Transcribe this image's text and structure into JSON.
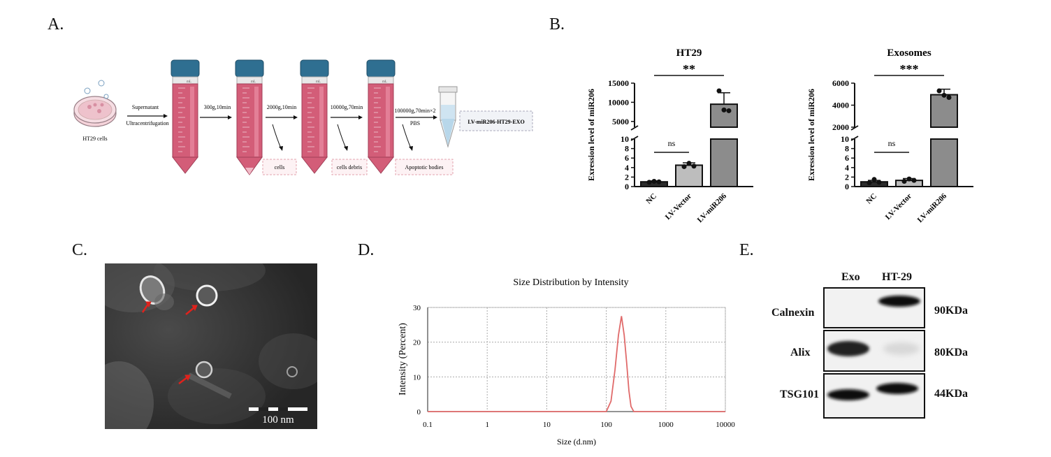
{
  "panels": {
    "A": {
      "letter": "A.",
      "cells_label": "HT29 cells",
      "step1_top": "Supernatant",
      "step1_bottom": "Ultracentrifugation",
      "step2": "300g,10min",
      "step3": "2000g,10min",
      "step4": "10000g,70min",
      "step5_top": "100000g,70min×2",
      "step5_bottom": "PBS",
      "product": "LV-miR206-HT29-EXO",
      "discard_1": "cells",
      "discard_2": "cells debris",
      "discard_3": "Apoptotic bodies",
      "tube_unit": "mL",
      "colors": {
        "tube": "#d35d78",
        "cap": "#2f6f91",
        "discard_border": "#e2a3ae",
        "tube_blue": "#b8d7ea"
      }
    },
    "B": {
      "letter": "B.",
      "ns_label": "ns"
    },
    "C": {
      "letter": "C.",
      "scale_label": "100 nm"
    },
    "D": {
      "letter": "D."
    },
    "E": {
      "letter": "E.",
      "columns": [
        "Exo",
        "HT-29"
      ],
      "rows": [
        {
          "protein": "Calnexin",
          "size": "90KDa"
        },
        {
          "protein": "Alix",
          "size": "80KDa"
        },
        {
          "protein": "TSG101",
          "size": "44KDa"
        }
      ]
    }
  },
  "chart_data": [
    {
      "type": "bar",
      "title": "HT29",
      "ylabel": "Exression level of miR206",
      "categories": [
        "NC",
        "LV-Vector",
        "LV-miR206"
      ],
      "values": [
        1.0,
        4.5,
        9500
      ],
      "error": [
        0.2,
        0.5,
        3000
      ],
      "points": [
        [
          0.9,
          1.1,
          1.0
        ],
        [
          4.2,
          4.9,
          4.3
        ],
        [
          13000,
          8000,
          7800
        ]
      ],
      "axis_lower": {
        "range": [
          0,
          10
        ],
        "ticks": [
          0,
          2,
          4,
          6,
          8,
          10
        ]
      },
      "axis_upper": {
        "range": [
          3500,
          15000
        ],
        "ticks": [
          5000,
          10000,
          15000
        ]
      },
      "significance": [
        {
          "from": "NC",
          "to": "LV-miR206",
          "label": "**"
        },
        {
          "from": "NC",
          "to": "LV-Vector",
          "label": "ns"
        }
      ],
      "bar_colors": [
        "#2b2b2b",
        "#bdbdbd",
        "#8c8c8c"
      ]
    },
    {
      "type": "bar",
      "title": "Exosomes",
      "ylabel": "Exression level of miR206",
      "categories": [
        "NC",
        "LV-Vector",
        "LV-miR206"
      ],
      "values": [
        1.0,
        1.3,
        4950
      ],
      "error": [
        0.3,
        0.4,
        500
      ],
      "points": [
        [
          0.8,
          1.5,
          0.9
        ],
        [
          1.1,
          1.6,
          1.3
        ],
        [
          5300,
          4900,
          4700
        ]
      ],
      "axis_lower": {
        "range": [
          0,
          10
        ],
        "ticks": [
          0,
          2,
          4,
          6,
          8,
          10
        ]
      },
      "axis_upper": {
        "range": [
          2000,
          6000
        ],
        "ticks": [
          2000,
          4000,
          6000
        ]
      },
      "significance": [
        {
          "from": "NC",
          "to": "LV-miR206",
          "label": "***"
        },
        {
          "from": "NC",
          "to": "LV-Vector",
          "label": "ns"
        }
      ],
      "bar_colors": [
        "#2b2b2b",
        "#bdbdbd",
        "#8c8c8c"
      ]
    },
    {
      "type": "line",
      "title": "Size Distribution by Intensity",
      "xlabel": "Size (d.nm)",
      "ylabel": "Intensity (Percent)",
      "x_scale": "log",
      "xlim": [
        0.1,
        10000
      ],
      "ylim": [
        0,
        30
      ],
      "x_ticks": [
        "0.1",
        "1",
        "10",
        "100",
        "1000",
        "10000"
      ],
      "y_ticks": [
        0,
        10,
        20,
        30
      ],
      "grid": true,
      "x": [
        0.1,
        100,
        120,
        140,
        160,
        180,
        200,
        220,
        240,
        260,
        290,
        320,
        10000
      ],
      "y": [
        0,
        0,
        3,
        12,
        22,
        27.5,
        22,
        14,
        6,
        1.5,
        0,
        0,
        0
      ],
      "color": "#e06a6a"
    }
  ]
}
